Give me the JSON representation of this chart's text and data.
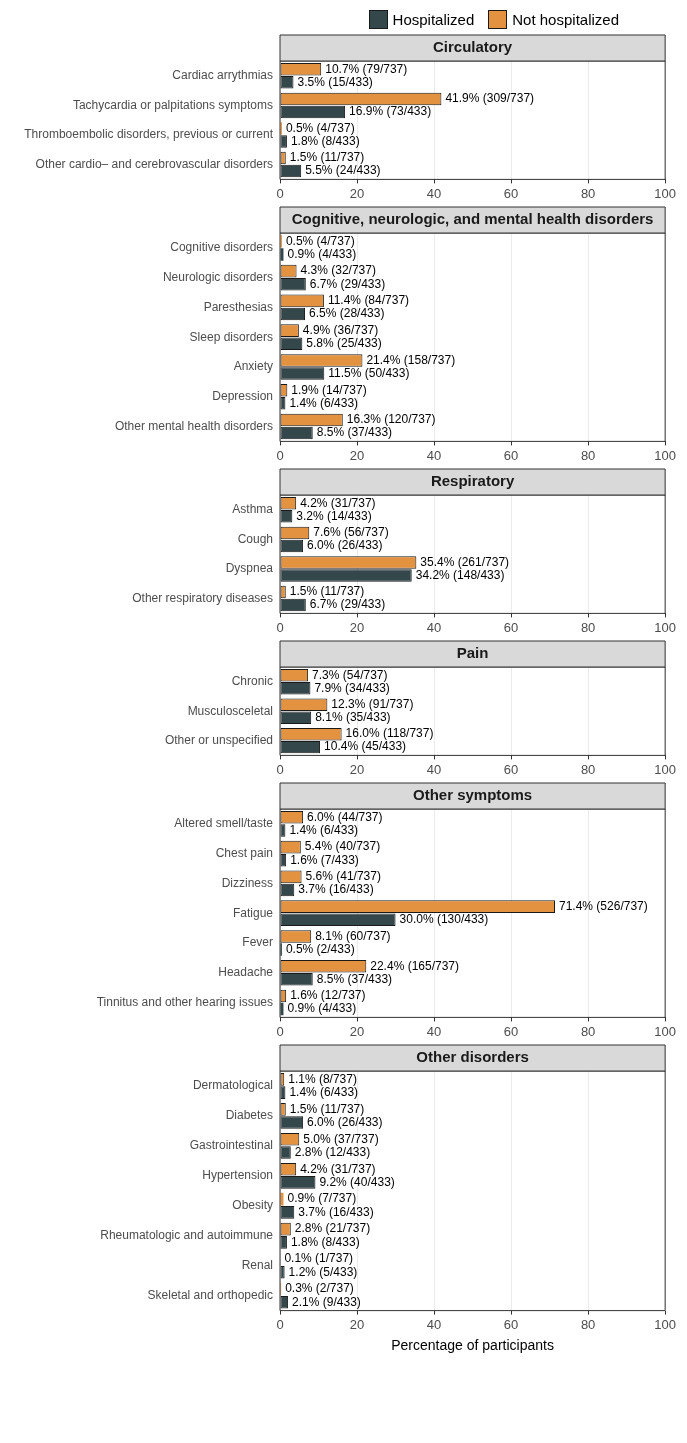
{
  "chart_data": [
    {
      "type": "bar",
      "orientation": "horizontal",
      "title": "Circulatory",
      "legend": "top right",
      "grid": "x",
      "xlim": [
        0,
        100
      ],
      "xticks": [
        0,
        20,
        40,
        60,
        80,
        100
      ],
      "categories": [
        "Cardiac arrythmias",
        "Tachycardia or palpitations symptoms",
        "Thromboembolic disorders, previous or current",
        "Other cardio– and cerebrovascular disorders"
      ],
      "series": [
        {
          "name": "Not hospitalized",
          "color": "#e39240",
          "values": [
            10.7,
            41.9,
            0.5,
            1.5
          ],
          "value_labels": [
            "10.7% (79/737)",
            "41.9% (309/737)",
            "0.5% (4/737)",
            "1.5% (11/737)"
          ]
        },
        {
          "name": "Hospitalized",
          "color": "#34474b",
          "values": [
            3.5,
            16.9,
            1.8,
            5.5
          ],
          "value_labels": [
            "3.5% (15/433)",
            "16.9% (73/433)",
            "1.8% (8/433)",
            "5.5% (24/433)"
          ]
        }
      ]
    },
    {
      "type": "bar",
      "orientation": "horizontal",
      "title": "Cognitive, neurologic, and mental health disorders",
      "grid": "x",
      "xlim": [
        0,
        100
      ],
      "xticks": [
        0,
        20,
        40,
        60,
        80,
        100
      ],
      "categories": [
        "Cognitive disorders",
        "Neurologic disorders",
        "Paresthesias",
        "Sleep disorders",
        "Anxiety",
        "Depression",
        "Other mental health disorders"
      ],
      "series": [
        {
          "color": "#e39240",
          "values": [
            0.5,
            4.3,
            11.4,
            4.9,
            21.4,
            1.9,
            16.3
          ],
          "value_labels": [
            "0.5% (4/737)",
            "4.3% (32/737)",
            "11.4% (84/737)",
            "4.9% (36/737)",
            "21.4% (158/737)",
            "1.9% (14/737)",
            "16.3% (120/737)"
          ]
        },
        {
          "color": "#34474b",
          "values": [
            0.9,
            6.7,
            6.5,
            5.8,
            11.5,
            1.4,
            8.5
          ],
          "value_labels": [
            "0.9% (4/433)",
            "6.7% (29/433)",
            "6.5% (28/433)",
            "5.8% (25/433)",
            "11.5% (50/433)",
            "1.4% (6/433)",
            "8.5% (37/433)"
          ]
        }
      ]
    },
    {
      "type": "bar",
      "orientation": "horizontal",
      "title": "Respiratory",
      "grid": "x",
      "xlim": [
        0,
        100
      ],
      "xticks": [
        0,
        20,
        40,
        60,
        80,
        100
      ],
      "categories": [
        "Asthma",
        "Cough",
        "Dyspnea",
        "Other respiratory diseases"
      ],
      "series": [
        {
          "color": "#e39240",
          "values": [
            4.2,
            7.6,
            35.4,
            1.5
          ],
          "value_labels": [
            "4.2% (31/737)",
            "7.6% (56/737)",
            "35.4% (261/737)",
            "1.5% (11/737)"
          ]
        },
        {
          "color": "#34474b",
          "values": [
            3.2,
            6.0,
            34.2,
            6.7
          ],
          "value_labels": [
            "3.2% (14/433)",
            "6.0% (26/433)",
            "34.2% (148/433)",
            "6.7% (29/433)"
          ]
        }
      ]
    },
    {
      "type": "bar",
      "orientation": "horizontal",
      "title": "Pain",
      "grid": "x",
      "xlim": [
        0,
        100
      ],
      "xticks": [
        0,
        20,
        40,
        60,
        80,
        100
      ],
      "categories": [
        "Chronic",
        "Musculosceletal",
        "Other or unspecified"
      ],
      "series": [
        {
          "color": "#e39240",
          "values": [
            7.3,
            12.3,
            16.0
          ],
          "value_labels": [
            "7.3% (54/737)",
            "12.3% (91/737)",
            "16.0% (118/737)"
          ]
        },
        {
          "color": "#34474b",
          "values": [
            7.9,
            8.1,
            10.4
          ],
          "value_labels": [
            "7.9% (34/433)",
            "8.1% (35/433)",
            "10.4% (45/433)"
          ]
        }
      ]
    },
    {
      "type": "bar",
      "orientation": "horizontal",
      "title": "Other symptoms",
      "grid": "x",
      "xlim": [
        0,
        100
      ],
      "xticks": [
        0,
        20,
        40,
        60,
        80,
        100
      ],
      "categories": [
        "Altered smell/taste",
        "Chest pain",
        "Dizziness",
        "Fatigue",
        "Fever",
        "Headache",
        "Tinnitus and other hearing issues"
      ],
      "series": [
        {
          "color": "#e39240",
          "values": [
            6.0,
            5.4,
            5.6,
            71.4,
            8.1,
            22.4,
            1.6
          ],
          "value_labels": [
            "6.0% (44/737)",
            "5.4% (40/737)",
            "5.6% (41/737)",
            "71.4% (526/737)",
            "8.1% (60/737)",
            "22.4% (165/737)",
            "1.6% (12/737)"
          ]
        },
        {
          "color": "#34474b",
          "values": [
            1.4,
            1.6,
            3.7,
            30.0,
            0.5,
            8.5,
            0.9
          ],
          "value_labels": [
            "1.4% (6/433)",
            "1.6% (7/433)",
            "3.7% (16/433)",
            "30.0% (130/433)",
            "0.5% (2/433)",
            "8.5% (37/433)",
            "0.9% (4/433)"
          ]
        }
      ]
    },
    {
      "type": "bar",
      "orientation": "horizontal",
      "title": "Other disorders",
      "grid": "x",
      "xlim": [
        0,
        100
      ],
      "xticks": [
        0,
        20,
        40,
        60,
        80,
        100
      ],
      "xlabel": "Percentage of participants",
      "categories": [
        "Dermatological",
        "Diabetes",
        "Gastrointestinal",
        "Hypertension",
        "Obesity",
        "Rheumatologic and autoimmune",
        "Renal",
        "Skeletal and orthopedic"
      ],
      "series": [
        {
          "color": "#e39240",
          "values": [
            1.1,
            1.5,
            5.0,
            4.2,
            0.9,
            2.8,
            0.1,
            0.3
          ],
          "value_labels": [
            "1.1% (8/737)",
            "1.5% (11/737)",
            "5.0% (37/737)",
            "4.2% (31/737)",
            "0.9% (7/737)",
            "2.8% (21/737)",
            "0.1% (1/737)",
            "0.3% (2/737)"
          ]
        },
        {
          "color": "#34474b",
          "values": [
            1.4,
            6.0,
            2.8,
            9.2,
            3.7,
            1.8,
            1.2,
            2.1
          ],
          "value_labels": [
            "1.4% (6/433)",
            "6.0% (26/433)",
            "2.8% (12/433)",
            "9.2% (40/433)",
            "3.7% (16/433)",
            "1.8% (8/433)",
            "1.2% (5/433)",
            "2.1% (9/433)"
          ]
        }
      ]
    }
  ]
}
